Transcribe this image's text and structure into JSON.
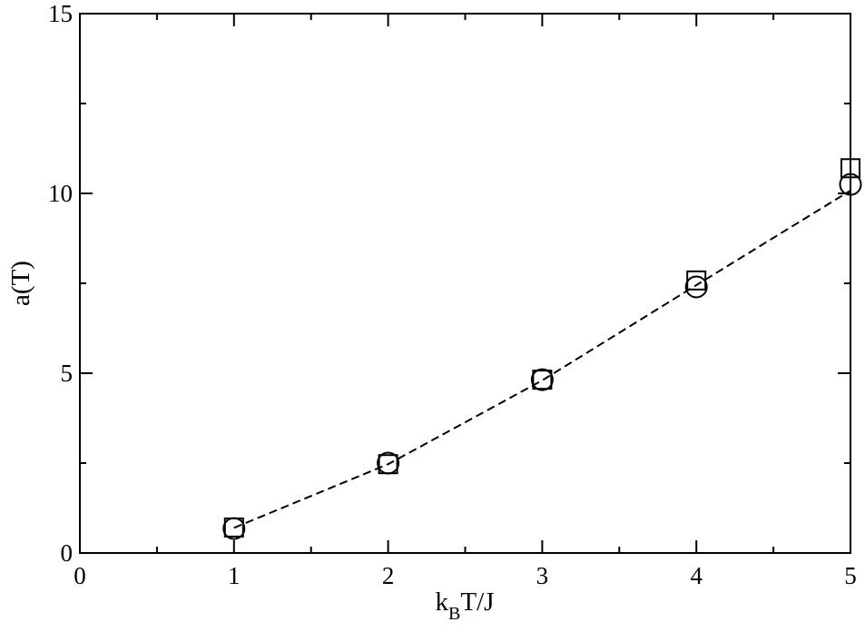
{
  "chart_data": {
    "type": "line",
    "xlabel": [
      "k",
      "B",
      "T/J"
    ],
    "ylabel": "a(T)",
    "x": [
      1,
      2,
      3,
      4,
      5
    ],
    "series": [
      {
        "color": "#000000",
        "marker": "square",
        "line": "none",
        "values": [
          0.71,
          2.47,
          4.82,
          7.58,
          10.7
        ]
      },
      {
        "color": "#000000",
        "marker": "circle",
        "line": "none",
        "values": [
          0.68,
          2.5,
          4.82,
          7.4,
          10.25
        ]
      },
      {
        "color": "#000000",
        "marker": "none",
        "line": "dashed",
        "values": [
          0.7,
          2.47,
          4.8,
          7.45,
          10.08
        ]
      }
    ],
    "xlim": [
      0,
      5
    ],
    "xticks": [
      0,
      1,
      2,
      3,
      4,
      5
    ],
    "xminor_ticks": [
      0.5,
      1.5,
      2.5,
      3.5,
      4.5
    ],
    "ylim": [
      0,
      15
    ],
    "yticks": [
      0,
      5,
      10,
      15
    ],
    "yminor_ticks": [
      2.5,
      7.5,
      12.5
    ],
    "grid": false
  }
}
